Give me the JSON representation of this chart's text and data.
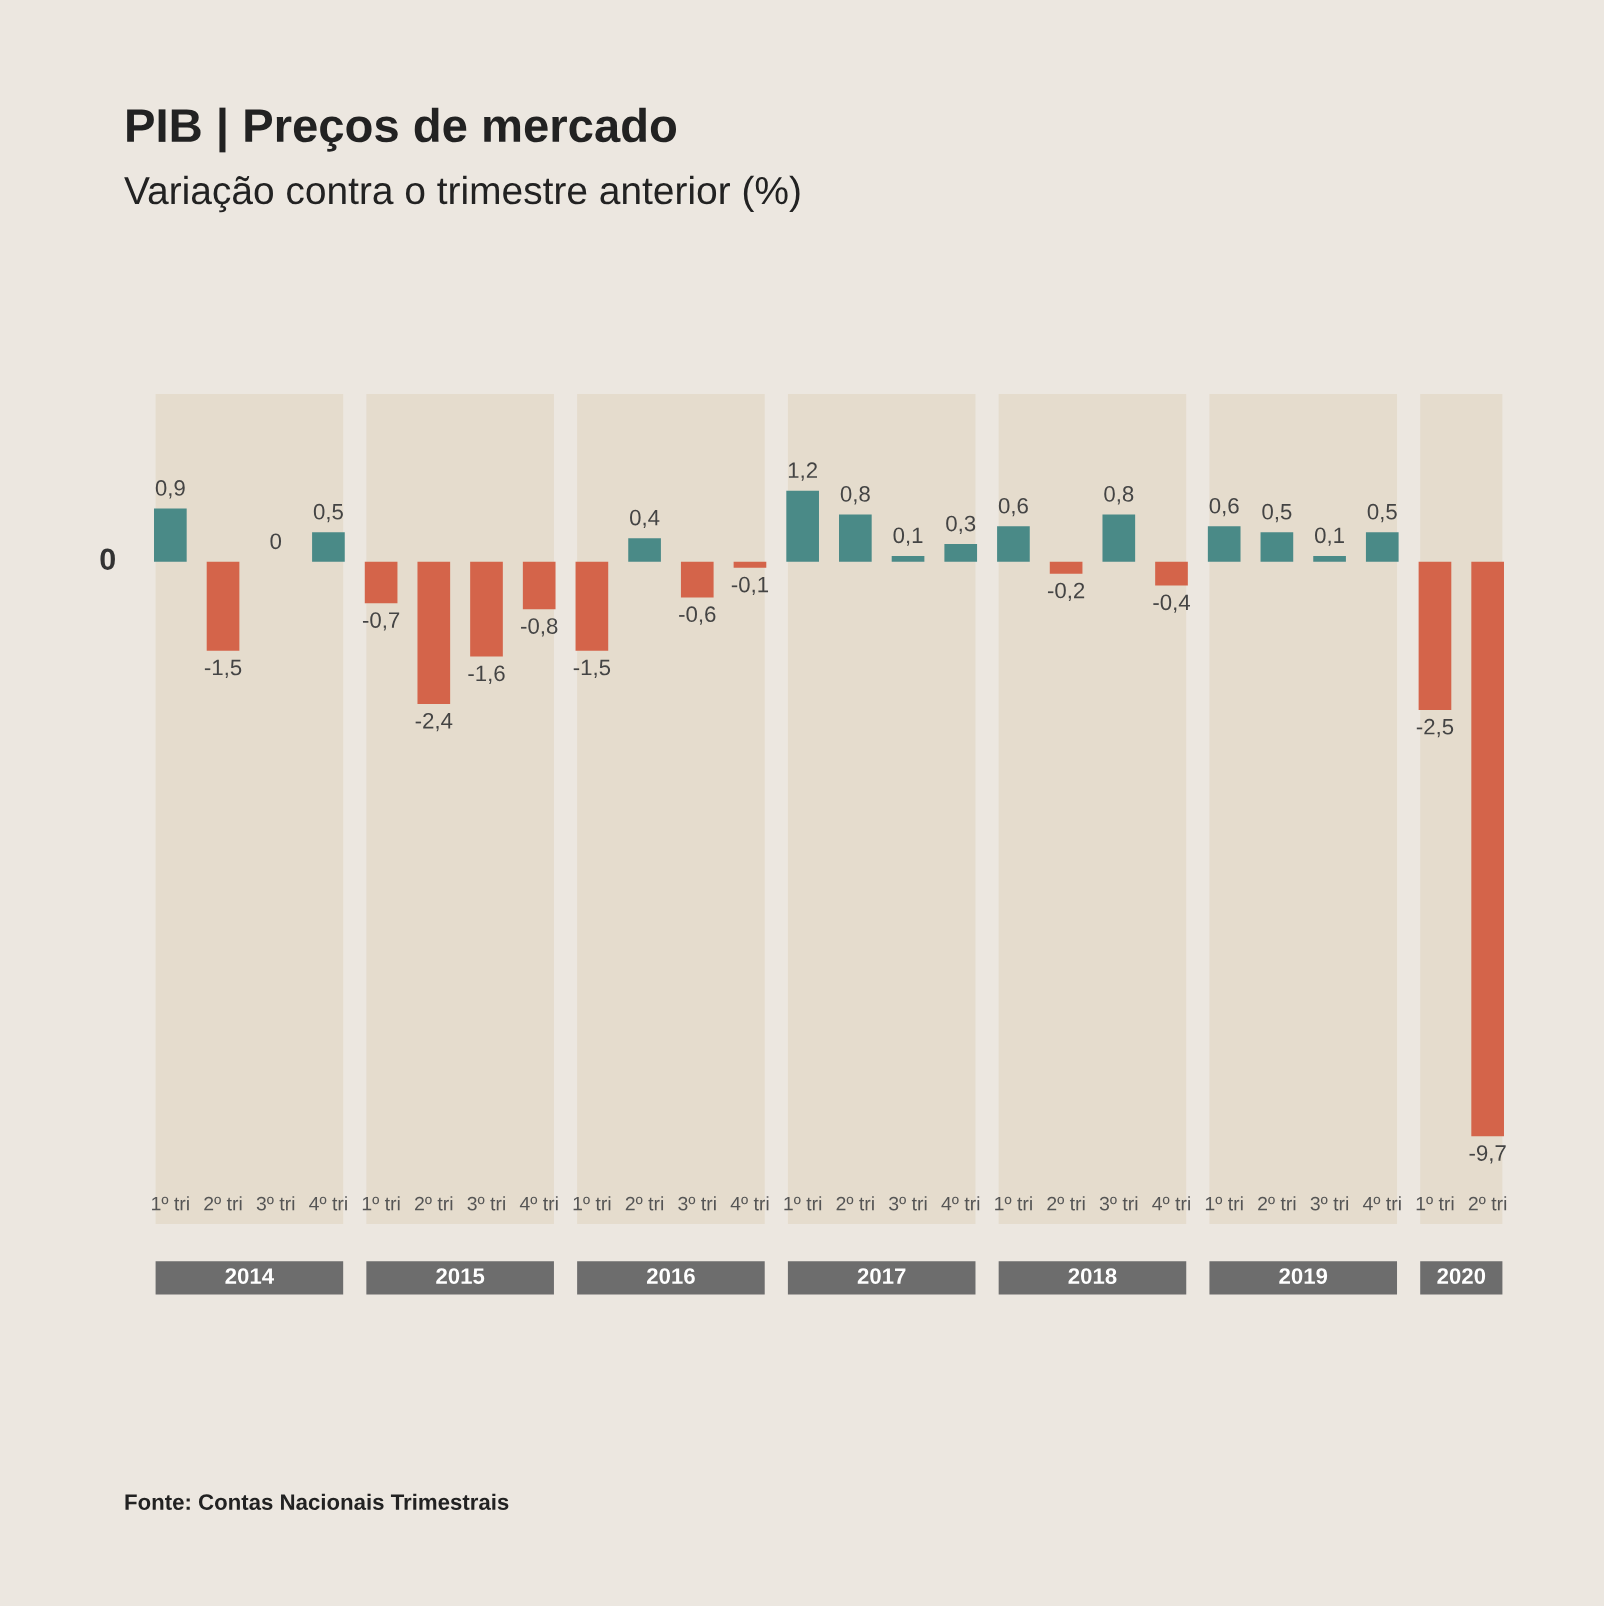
{
  "chart_data": {
    "type": "bar",
    "title": "PIB | Preços de mercado",
    "subtitle": "Variação contra o trimestre anterior (%)",
    "categories": [
      "1º tri",
      "2º tri",
      "3º tri",
      "4º tri",
      "1º tri",
      "2º tri",
      "3º tri",
      "4º tri",
      "1º tri",
      "2º tri",
      "3º tri",
      "4º tri",
      "1º tri",
      "2º tri",
      "3º tri",
      "4º tri",
      "1º tri",
      "2º tri",
      "3º tri",
      "4º tri",
      "1º tri",
      "2º tri",
      "3º tri",
      "4º tri",
      "1º tri",
      "2º tri"
    ],
    "values": [
      0.9,
      -1.5,
      0,
      0.5,
      -0.7,
      -2.4,
      -1.6,
      -0.8,
      -1.5,
      0.4,
      -0.6,
      -0.1,
      1.2,
      0.8,
      0.1,
      0.3,
      0.6,
      -0.2,
      0.8,
      -0.4,
      0.6,
      0.5,
      0.1,
      0.5,
      -2.5,
      -9.7
    ],
    "value_labels": [
      "0,9",
      "-1,5",
      "0",
      "0,5",
      "-0,7",
      "-2,4",
      "-1,6",
      "-0,8",
      "-1,5",
      "0,4",
      "-0,6",
      "-0,1",
      "1,2",
      "0,8",
      "0,1",
      "0,3",
      "0,6",
      "-0,2",
      "0,8",
      "-0,4",
      "0,6",
      "0,5",
      "0,1",
      "0,5",
      "-2,5",
      "-9,7"
    ],
    "colors": [
      "#4a8a87",
      "#d4644a",
      "#4a8a87",
      "#4a8a87",
      "#d4644a",
      "#d4644a",
      "#d4644a",
      "#d4644a",
      "#d4644a",
      "#4a8a87",
      "#d4644a",
      "#d4644a",
      "#4a8a87",
      "#4a8a87",
      "#4a8a87",
      "#4a8a87",
      "#4a8a87",
      "#d4644a",
      "#4a8a87",
      "#d4644a",
      "#4a8a87",
      "#4a8a87",
      "#4a8a87",
      "#4a8a87",
      "#d4644a",
      "#d4644a"
    ],
    "annotations": [
      "2014",
      "2015",
      "2016",
      "2017",
      "2018",
      "2019",
      "2020",
      "0",
      "Fonte: Contas Nacionais Trimestrais"
    ]
  }
}
